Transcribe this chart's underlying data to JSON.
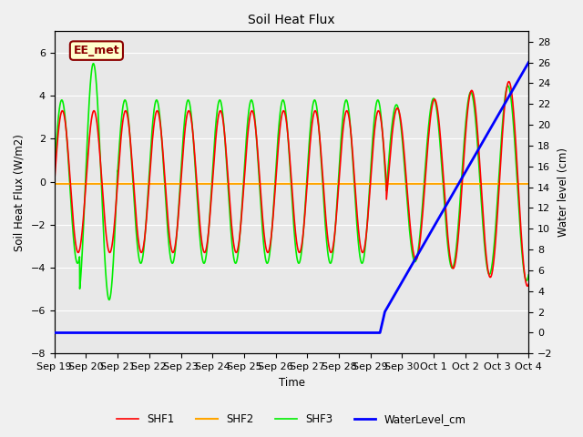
{
  "title": "Soil Heat Flux",
  "ylabel_left": "Soil Heat Flux (W/m2)",
  "ylabel_right": "Water level (cm)",
  "xlabel": "Time",
  "ylim_left": [
    -8,
    7
  ],
  "ylim_right": [
    -2,
    29
  ],
  "fig_bg": "#f0f0f0",
  "plot_bg": "#e8e8e8",
  "annotation_text": "EE_met",
  "annotation_color": "#8B0000",
  "annotation_bg": "#ffffcc",
  "annotation_border": "#8B0000",
  "shf2_color": "orange",
  "shf1_color": "red",
  "shf3_color": "#00ee00",
  "wl_color": "blue",
  "grid_color": "#d0d0d0",
  "xtick_labels": [
    "Sep 19",
    "Sep 20",
    "Sep 21",
    "Sep 22",
    "Sep 23",
    "Sep 24",
    "Sep 25",
    "Sep 26",
    "Sep 27",
    "Sep 28",
    "Sep 29",
    "Sep 30",
    "Oct 1",
    "Oct 2",
    "Oct 3",
    "Oct 4"
  ]
}
